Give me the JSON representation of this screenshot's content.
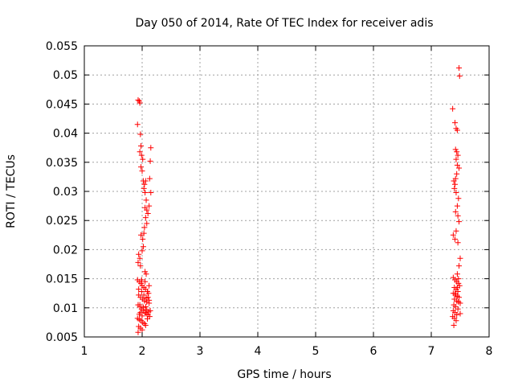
{
  "chart_data": {
    "type": "scatter",
    "title": "Day 050 of 2014, Rate Of TEC Index for receiver adis",
    "xlabel": "GPS time / hours",
    "ylabel": "ROTI / TECUs",
    "xlim": [
      1,
      8
    ],
    "ylim": [
      0.005,
      0.055
    ],
    "xticks": [
      1,
      2,
      3,
      4,
      5,
      6,
      7,
      8
    ],
    "xtick_labels": [
      "1",
      "2",
      "3",
      "4",
      "5",
      "6",
      "7",
      "8"
    ],
    "yticks": [
      0.005,
      0.01,
      0.015,
      0.02,
      0.025,
      0.03,
      0.035,
      0.04,
      0.045,
      0.05,
      0.055
    ],
    "ytick_labels": [
      "0.005",
      "0.01",
      "0.015",
      "0.02",
      "0.025",
      "0.03",
      "0.035",
      "0.04",
      "0.045",
      "0.05",
      "0.055"
    ],
    "grid": true,
    "marker": "plus",
    "colors": {
      "marker": "#ff0000",
      "grid": "#a0a0a0",
      "axis": "#000000"
    },
    "series": [
      {
        "points": [
          [
            1.93,
            0.0457
          ],
          [
            1.95,
            0.0455
          ],
          [
            1.96,
            0.0452
          ],
          [
            1.92,
            0.0415
          ],
          [
            1.97,
            0.0398
          ],
          [
            1.98,
            0.0378
          ],
          [
            1.96,
            0.0368
          ],
          [
            1.99,
            0.0362
          ],
          [
            2.01,
            0.0355
          ],
          [
            1.98,
            0.0342
          ],
          [
            2.0,
            0.0335
          ],
          [
            2.02,
            0.0318
          ],
          [
            2.04,
            0.0312
          ],
          [
            2.06,
            0.0318
          ],
          [
            2.03,
            0.0305
          ],
          [
            2.05,
            0.0298
          ],
          [
            2.07,
            0.0285
          ],
          [
            2.05,
            0.0272
          ],
          [
            2.08,
            0.0268
          ],
          [
            2.1,
            0.0262
          ],
          [
            2.06,
            0.0255
          ],
          [
            2.08,
            0.0245
          ],
          [
            2.04,
            0.0238
          ],
          [
            2.03,
            0.0228
          ],
          [
            1.98,
            0.0225
          ],
          [
            2.01,
            0.0218
          ],
          [
            2.02,
            0.0205
          ],
          [
            2.0,
            0.0198
          ],
          [
            1.94,
            0.0192
          ],
          [
            1.96,
            0.0185
          ],
          [
            1.93,
            0.0178
          ],
          [
            1.97,
            0.0172
          ],
          [
            2.05,
            0.0162
          ],
          [
            2.07,
            0.0158
          ],
          [
            1.92,
            0.0148
          ],
          [
            1.95,
            0.0145
          ],
          [
            1.98,
            0.0142
          ],
          [
            2.0,
            0.0138
          ],
          [
            2.03,
            0.0135
          ],
          [
            2.06,
            0.0132
          ],
          [
            2.09,
            0.0128
          ],
          [
            2.11,
            0.0125
          ],
          [
            1.94,
            0.0122
          ],
          [
            1.97,
            0.0118
          ],
          [
            2.01,
            0.0115
          ],
          [
            2.04,
            0.0112
          ],
          [
            2.08,
            0.011
          ],
          [
            2.12,
            0.0108
          ],
          [
            1.93,
            0.0105
          ],
          [
            1.96,
            0.0102
          ],
          [
            1.99,
            0.0098
          ],
          [
            2.02,
            0.0095
          ],
          [
            2.05,
            0.0092
          ],
          [
            2.07,
            0.009
          ],
          [
            2.1,
            0.0088
          ],
          [
            2.13,
            0.0085
          ],
          [
            1.92,
            0.0082
          ],
          [
            1.95,
            0.008
          ],
          [
            1.98,
            0.0078
          ],
          [
            2.01,
            0.0075
          ],
          [
            2.04,
            0.0073
          ],
          [
            2.06,
            0.007
          ],
          [
            1.94,
            0.0068
          ],
          [
            1.97,
            0.0065
          ],
          [
            2.0,
            0.0062
          ],
          [
            1.93,
            0.0058
          ],
          [
            1.96,
            0.0105
          ],
          [
            2.02,
            0.0101
          ],
          [
            2.08,
            0.0097
          ],
          [
            2.11,
            0.0093
          ],
          [
            1.95,
            0.0089
          ],
          [
            2.0,
            0.0086
          ],
          [
            2.09,
            0.0081
          ],
          [
            1.99,
            0.0128
          ],
          [
            2.03,
            0.0122
          ],
          [
            2.07,
            0.0117
          ],
          [
            2.12,
            0.0113
          ],
          [
            1.94,
            0.0132
          ],
          [
            2.14,
            0.0095
          ],
          [
            2.12,
            0.0138
          ],
          [
            2.15,
            0.0375
          ],
          [
            2.14,
            0.0352
          ],
          [
            2.13,
            0.0322
          ],
          [
            2.15,
            0.0298
          ],
          [
            2.12,
            0.0275
          ],
          [
            1.99,
            0.0148
          ],
          [
            2.05,
            0.0145
          ],
          [
            1.97,
            0.0092
          ],
          [
            2.06,
            0.0102
          ],
          [
            2.1,
            0.0118
          ],
          [
            7.48,
            0.0512
          ],
          [
            7.49,
            0.0498
          ],
          [
            7.37,
            0.0442
          ],
          [
            7.41,
            0.0418
          ],
          [
            7.43,
            0.0408
          ],
          [
            7.45,
            0.0405
          ],
          [
            7.42,
            0.0372
          ],
          [
            7.44,
            0.0368
          ],
          [
            7.46,
            0.0362
          ],
          [
            7.43,
            0.0355
          ],
          [
            7.45,
            0.0345
          ],
          [
            7.48,
            0.034
          ],
          [
            7.44,
            0.033
          ],
          [
            7.42,
            0.0322
          ],
          [
            7.39,
            0.0318
          ],
          [
            7.41,
            0.0312
          ],
          [
            7.4,
            0.0305
          ],
          [
            7.43,
            0.0298
          ],
          [
            7.47,
            0.0288
          ],
          [
            7.45,
            0.0275
          ],
          [
            7.42,
            0.0265
          ],
          [
            7.46,
            0.0258
          ],
          [
            7.48,
            0.0248
          ],
          [
            7.43,
            0.0232
          ],
          [
            7.38,
            0.0225
          ],
          [
            7.41,
            0.0218
          ],
          [
            7.46,
            0.0212
          ],
          [
            7.5,
            0.0185
          ],
          [
            7.48,
            0.0172
          ],
          [
            7.45,
            0.0158
          ],
          [
            7.38,
            0.0152
          ],
          [
            7.41,
            0.0148
          ],
          [
            7.44,
            0.0145
          ],
          [
            7.47,
            0.0142
          ],
          [
            7.49,
            0.0138
          ],
          [
            7.4,
            0.0135
          ],
          [
            7.43,
            0.0132
          ],
          [
            7.46,
            0.0128
          ],
          [
            7.38,
            0.0125
          ],
          [
            7.42,
            0.0122
          ],
          [
            7.45,
            0.012
          ],
          [
            7.48,
            0.0118
          ],
          [
            7.4,
            0.0115
          ],
          [
            7.44,
            0.0112
          ],
          [
            7.47,
            0.011
          ],
          [
            7.5,
            0.0108
          ],
          [
            7.39,
            0.0105
          ],
          [
            7.42,
            0.0102
          ],
          [
            7.46,
            0.0098
          ],
          [
            7.38,
            0.0095
          ],
          [
            7.41,
            0.0092
          ],
          [
            7.44,
            0.0088
          ],
          [
            7.37,
            0.0085
          ],
          [
            7.4,
            0.0082
          ],
          [
            7.5,
            0.009
          ],
          [
            7.43,
            0.0078
          ],
          [
            7.39,
            0.007
          ],
          [
            7.47,
            0.015
          ],
          [
            7.45,
            0.0135
          ],
          [
            7.41,
            0.0125
          ]
        ]
      }
    ]
  }
}
